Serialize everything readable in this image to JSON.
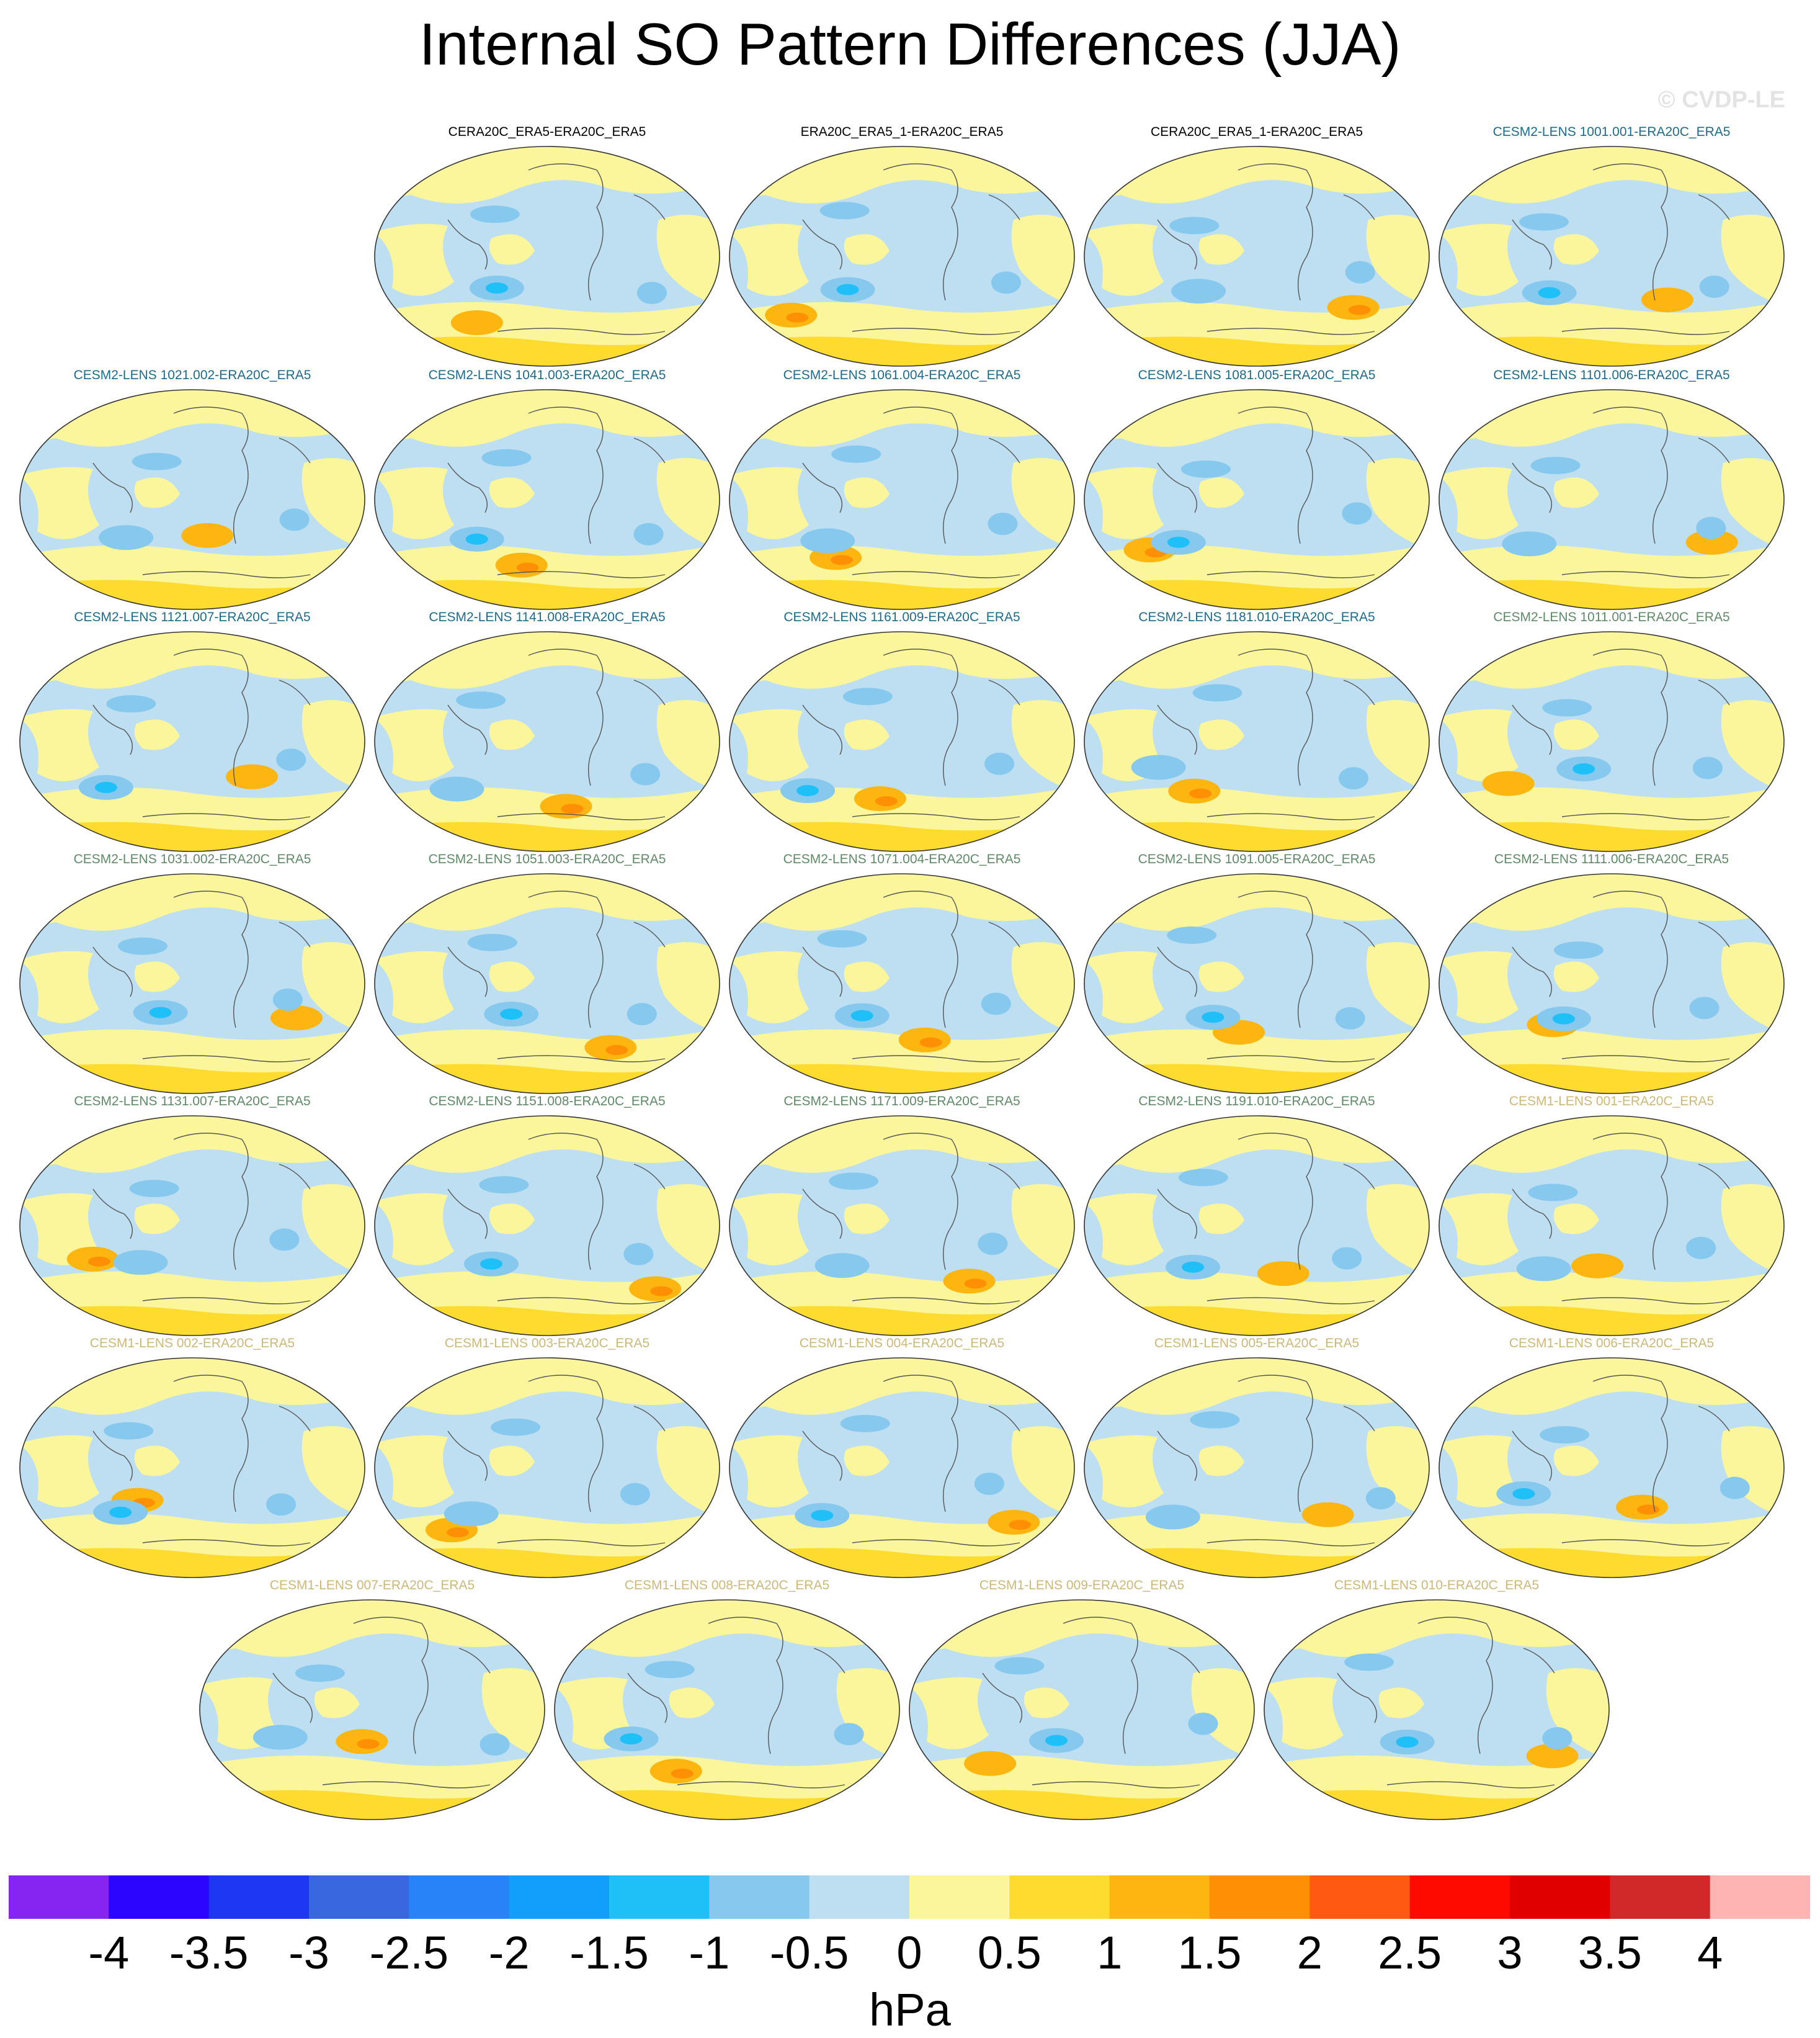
{
  "title": "Internal SO Pattern Differences (JJA)",
  "watermark": "© CVDP-LE",
  "panels": [
    {
      "label": "CERA20C_ERA5-ERA20C_ERA5",
      "color": "#000000"
    },
    {
      "label": "ERA20C_ERA5_1-ERA20C_ERA5",
      "color": "#000000"
    },
    {
      "label": "CERA20C_ERA5_1-ERA20C_ERA5",
      "color": "#000000"
    },
    {
      "label": "CESM2-LENS 1001.001-ERA20C_ERA5",
      "color": "#1c6b8c"
    },
    {
      "label": "CESM2-LENS 1021.002-ERA20C_ERA5",
      "color": "#1c6b8c"
    },
    {
      "label": "CESM2-LENS 1041.003-ERA20C_ERA5",
      "color": "#1c6b8c"
    },
    {
      "label": "CESM2-LENS 1061.004-ERA20C_ERA5",
      "color": "#1c6b8c"
    },
    {
      "label": "CESM2-LENS 1081.005-ERA20C_ERA5",
      "color": "#1c6b8c"
    },
    {
      "label": "CESM2-LENS 1101.006-ERA20C_ERA5",
      "color": "#1c6b8c"
    },
    {
      "label": "CESM2-LENS 1121.007-ERA20C_ERA5",
      "color": "#1c6b8c"
    },
    {
      "label": "CESM2-LENS 1141.008-ERA20C_ERA5",
      "color": "#1c6b8c"
    },
    {
      "label": "CESM2-LENS 1161.009-ERA20C_ERA5",
      "color": "#1c6b8c"
    },
    {
      "label": "CESM2-LENS 1181.010-ERA20C_ERA5",
      "color": "#1c6b8c"
    },
    {
      "label": "CESM2-LENS 1011.001-ERA20C_ERA5",
      "color": "#5e8a66"
    },
    {
      "label": "CESM2-LENS 1031.002-ERA20C_ERA5",
      "color": "#5e8a66"
    },
    {
      "label": "CESM2-LENS 1051.003-ERA20C_ERA5",
      "color": "#5e8a66"
    },
    {
      "label": "CESM2-LENS 1071.004-ERA20C_ERA5",
      "color": "#5e8a66"
    },
    {
      "label": "CESM2-LENS 1091.005-ERA20C_ERA5",
      "color": "#5e8a66"
    },
    {
      "label": "CESM2-LENS 1111.006-ERA20C_ERA5",
      "color": "#5e8a66"
    },
    {
      "label": "CESM2-LENS 1131.007-ERA20C_ERA5",
      "color": "#5e8a66"
    },
    {
      "label": "CESM2-LENS 1151.008-ERA20C_ERA5",
      "color": "#5e8a66"
    },
    {
      "label": "CESM2-LENS 1171.009-ERA20C_ERA5",
      "color": "#5e8a66"
    },
    {
      "label": "CESM2-LENS 1191.010-ERA20C_ERA5",
      "color": "#5e8a66"
    },
    {
      "label": "CESM1-LENS 001-ERA20C_ERA5",
      "color": "#cdb878"
    },
    {
      "label": "CESM1-LENS 002-ERA20C_ERA5",
      "color": "#cdb878"
    },
    {
      "label": "CESM1-LENS 003-ERA20C_ERA5",
      "color": "#cdb878"
    },
    {
      "label": "CESM1-LENS 004-ERA20C_ERA5",
      "color": "#cdb878"
    },
    {
      "label": "CESM1-LENS 005-ERA20C_ERA5",
      "color": "#cdb878"
    },
    {
      "label": "CESM1-LENS 006-ERA20C_ERA5",
      "color": "#cdb878"
    },
    {
      "label": "CESM1-LENS 007-ERA20C_ERA5",
      "color": "#cdb878"
    },
    {
      "label": "CESM1-LENS 008-ERA20C_ERA5",
      "color": "#cdb878"
    },
    {
      "label": "CESM1-LENS 009-ERA20C_ERA5",
      "color": "#cdb878"
    },
    {
      "label": "CESM1-LENS 010-ERA20C_ERA5",
      "color": "#cdb878"
    }
  ],
  "colorbar": {
    "units": "hPa",
    "labels": [
      "-4",
      "-3.5",
      "-3",
      "-2.5",
      "-2",
      "-1.5",
      "-1",
      "-0.5",
      "0",
      "0.5",
      "1",
      "1.5",
      "2",
      "2.5",
      "3",
      "3.5",
      "4"
    ],
    "colors": [
      "#8526f0",
      "#2b05ff",
      "#1e37f2",
      "#3867e0",
      "#2783f7",
      "#129ffb",
      "#1fc0f8",
      "#86c8ee",
      "#bddff1",
      "#fbf69c",
      "#fedc2f",
      "#fdb50f",
      "#ff8f05",
      "#ff5912",
      "#ff0a00",
      "#e00000",
      "#d1282a",
      "#ffb4b4"
    ]
  }
}
